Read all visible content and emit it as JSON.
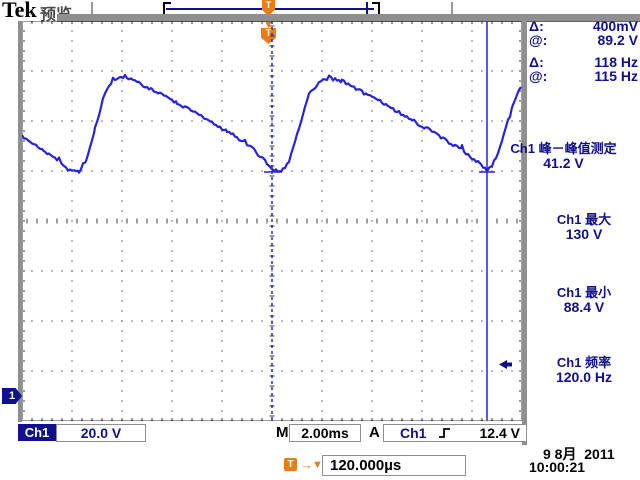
{
  "logo": {
    "brand": "Tek",
    "mode": "预览"
  },
  "record_bar": {
    "trigger_flag": "T"
  },
  "trigger_marker": {
    "flag": "T",
    "arrow_down": "▼"
  },
  "cursor_readouts": [
    {
      "label": "Δ:",
      "value": "400mV"
    },
    {
      "label": "@:",
      "value": "89.2 V"
    },
    {
      "label": "Δ:",
      "value": "118 Hz"
    },
    {
      "label": "@:",
      "value": "115 Hz"
    }
  ],
  "measurements": [
    {
      "source": "Ch1",
      "name": "峰－峰值测定",
      "value": "41.2 V"
    },
    {
      "source": "Ch1",
      "name": "最大",
      "value": "130 V"
    },
    {
      "source": "Ch1",
      "name": "最小",
      "value": "88.4 V"
    },
    {
      "source": "Ch1",
      "name": "频率",
      "value": "120.0 Hz"
    }
  ],
  "status_bar": {
    "channel_label": "Ch1",
    "channel_scale": "20.0 V",
    "main_label": "M",
    "timebase": "2.00ms",
    "acquire_label": "A",
    "trigger_source": "Ch1",
    "trigger_level": "12.4 V"
  },
  "horizontal_readout": {
    "flag": "T",
    "arrow_right": "→",
    "arrow_down": "▼",
    "delay": "120.000µs"
  },
  "datetime": {
    "date": "9 8月  2011",
    "time": "10:00:21"
  },
  "channel_marker": {
    "label": "1"
  },
  "colors": {
    "navy": "#10108c",
    "waveform_blue": "#2424e0",
    "orange": "#e87d17",
    "grid_dot": "#3c3c3c",
    "frame_gray": "#8f8f8f"
  },
  "chart_data": {
    "type": "line",
    "x_units": "ms",
    "y_units": "V",
    "time_per_div_ms": 2.0,
    "volts_per_div": 20.0,
    "divisions": {
      "horizontal": 10,
      "vertical": 8
    },
    "x_range_ms": [
      -10,
      10
    ],
    "grid": "dotted graticule, center crosshair ticks",
    "trigger_time_ms": 0.0,
    "trigger_level_v": 12.4,
    "ground_level_v": 0.0,
    "cursors": {
      "vertical_ms": [
        0.0,
        8.6
      ]
    },
    "measured": {
      "pk_pk_v": 41.2,
      "max_v": 130,
      "min_v": 88.4,
      "freq_hz": 120.0
    },
    "series": [
      {
        "name": "Ch1",
        "color": "#2424e0",
        "points": [
          [
            -10.0,
            104.0
          ],
          [
            -9.08,
            97.6
          ],
          [
            -8.4,
            92.8
          ],
          [
            -8.08,
            90.0
          ],
          [
            -7.72,
            89.6
          ],
          [
            -7.44,
            93.6
          ],
          [
            -7.08,
            107.2
          ],
          [
            -6.68,
            121.2
          ],
          [
            -6.36,
            126.0
          ],
          [
            -6.04,
            127.6
          ],
          [
            -5.56,
            126.4
          ],
          [
            -4.8,
            122.4
          ],
          [
            -3.8,
            117.2
          ],
          [
            -2.8,
            111.6
          ],
          [
            -1.8,
            106.0
          ],
          [
            -0.88,
            100.0
          ],
          [
            -0.36,
            94.8
          ],
          [
            0.0,
            90.4
          ],
          [
            0.36,
            89.6
          ],
          [
            0.68,
            93.6
          ],
          [
            1.08,
            107.2
          ],
          [
            1.48,
            120.4
          ],
          [
            1.88,
            125.6
          ],
          [
            2.28,
            127.2
          ],
          [
            2.8,
            126.0
          ],
          [
            3.6,
            121.6
          ],
          [
            4.6,
            116.4
          ],
          [
            5.6,
            110.4
          ],
          [
            6.6,
            104.4
          ],
          [
            7.6,
            98.4
          ],
          [
            8.28,
            93.2
          ],
          [
            8.6,
            90.0
          ],
          [
            8.8,
            92.0
          ],
          [
            9.12,
            99.2
          ],
          [
            9.44,
            110.4
          ],
          [
            9.72,
            118.8
          ],
          [
            9.96,
            123.6
          ]
        ]
      }
    ]
  }
}
